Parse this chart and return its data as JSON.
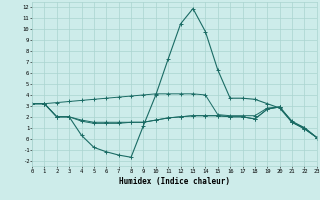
{
  "xlabel": "Humidex (Indice chaleur)",
  "x": [
    0,
    1,
    2,
    3,
    4,
    5,
    6,
    7,
    8,
    9,
    10,
    11,
    12,
    13,
    14,
    15,
    16,
    17,
    18,
    19,
    20,
    21,
    22,
    23
  ],
  "line1": [
    3.2,
    3.2,
    3.3,
    3.4,
    3.5,
    3.6,
    3.7,
    3.8,
    3.9,
    4.0,
    4.1,
    4.1,
    4.1,
    4.1,
    4.0,
    2.2,
    2.1,
    2.1,
    2.1,
    2.8,
    2.9,
    1.6,
    1.0,
    0.1
  ],
  "line2": [
    3.2,
    3.2,
    2.0,
    2.0,
    1.7,
    1.5,
    1.5,
    1.5,
    1.5,
    1.5,
    1.7,
    1.9,
    2.0,
    2.1,
    2.1,
    2.1,
    2.0,
    2.0,
    1.8,
    2.7,
    2.9,
    1.5,
    0.9,
    0.1
  ],
  "line3": [
    3.2,
    3.2,
    2.0,
    2.0,
    1.6,
    1.4,
    1.4,
    1.4,
    1.5,
    1.5,
    1.7,
    1.9,
    2.0,
    2.1,
    2.1,
    2.1,
    2.0,
    2.0,
    1.8,
    2.7,
    2.9,
    1.5,
    0.9,
    0.1
  ],
  "line4": [
    3.2,
    3.2,
    2.0,
    2.0,
    0.3,
    -0.8,
    -1.2,
    -1.5,
    -1.7,
    1.2,
    4.0,
    7.3,
    10.5,
    11.9,
    9.8,
    6.3,
    3.7,
    3.7,
    3.6,
    3.2,
    2.8,
    1.5,
    1.0,
    0.1
  ],
  "bg_color": "#cdecea",
  "grid_color": "#aad4d0",
  "line_color": "#1a6b64",
  "ylim": [
    -2.5,
    12.5
  ],
  "xlim": [
    0,
    23
  ],
  "yticks": [
    -2,
    -1,
    0,
    1,
    2,
    3,
    4,
    5,
    6,
    7,
    8,
    9,
    10,
    11,
    12
  ],
  "xticks": [
    0,
    1,
    2,
    3,
    4,
    5,
    6,
    7,
    8,
    9,
    10,
    11,
    12,
    13,
    14,
    15,
    16,
    17,
    18,
    19,
    20,
    21,
    22,
    23
  ]
}
